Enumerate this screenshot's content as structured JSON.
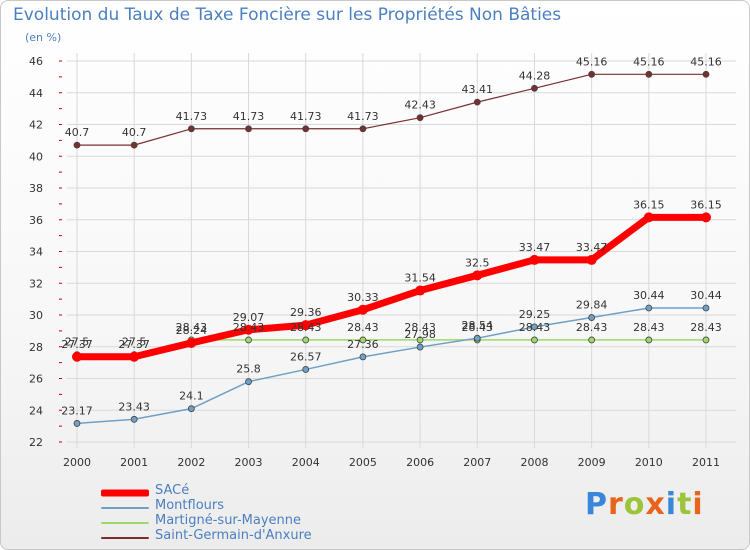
{
  "title": "Evolution du Taux de Taxe Foncière sur les Propriétés Non Bâties",
  "unit": "(en %)",
  "logo": {
    "text": "Proxiti"
  },
  "colors": {
    "title": "#4a7fc1",
    "grid": "#d9d9d9",
    "axis_marker": "#cc0000"
  },
  "chart_data": {
    "type": "line",
    "title": "Evolution du Taux de Taxe Foncière sur les Propriétés Non Bâties",
    "ylabel": "(en %)",
    "xlabel": "",
    "ylim": [
      22,
      46
    ],
    "yticks": [
      22,
      24,
      26,
      28,
      30,
      32,
      34,
      36,
      38,
      40,
      42,
      44,
      46
    ],
    "x": [
      "2000",
      "2001",
      "2002",
      "2003",
      "2004",
      "2005",
      "2006",
      "2007",
      "2008",
      "2009",
      "2010",
      "2011"
    ],
    "grid": true,
    "legend_position": "bottom-left",
    "series": [
      {
        "name": "SACé",
        "color": "#ff0000",
        "width": 7,
        "marker": 5,
        "values": [
          27.37,
          27.37,
          28.24,
          29.07,
          29.36,
          30.33,
          31.54,
          32.5,
          33.47,
          33.47,
          36.15,
          36.15
        ],
        "labels": [
          "27.37",
          "27.37",
          "28.24",
          "29.07",
          "29.36",
          "30.33",
          "31.54",
          "32.5",
          "33.47",
          "33.47",
          "36.15",
          "36.15"
        ]
      },
      {
        "name": "Montflours",
        "color": "#6ea0c8",
        "width": 1.5,
        "marker": 3,
        "values": [
          23.17,
          23.43,
          24.1,
          25.8,
          26.57,
          27.36,
          27.98,
          28.54,
          29.25,
          29.84,
          30.44,
          30.44
        ],
        "labels": [
          "23.17",
          "23.43",
          "24.1",
          "25.8",
          "26.57",
          "27.36",
          "27.98",
          "28.54",
          "29.25",
          "29.84",
          "30.44",
          "30.44"
        ]
      },
      {
        "name": "Martigné-sur-Mayenne",
        "color": "#9ed86a",
        "width": 1.5,
        "marker": 3,
        "values": [
          27.5,
          27.5,
          28.43,
          28.43,
          28.43,
          28.43,
          28.43,
          28.43,
          28.43,
          28.43,
          28.43,
          28.43
        ],
        "labels": [
          "27.5",
          "27.5",
          "28.43",
          "28.43",
          "28.43",
          "28.43",
          "28.43",
          "28.43",
          "28.43",
          "28.43",
          "28.43",
          "28.43"
        ]
      },
      {
        "name": "Saint-Germain-d'Anxure",
        "color": "#7a2f2f",
        "width": 1.2,
        "marker": 3,
        "values": [
          40.7,
          40.7,
          41.73,
          41.73,
          41.73,
          41.73,
          42.43,
          43.41,
          44.28,
          45.16,
          45.16,
          45.16
        ],
        "labels": [
          "40.7",
          "40.7",
          "41.73",
          "41.73",
          "41.73",
          "41.73",
          "42.43",
          "43.41",
          "44.28",
          "45.16",
          "45.16",
          "45.16"
        ]
      }
    ]
  }
}
